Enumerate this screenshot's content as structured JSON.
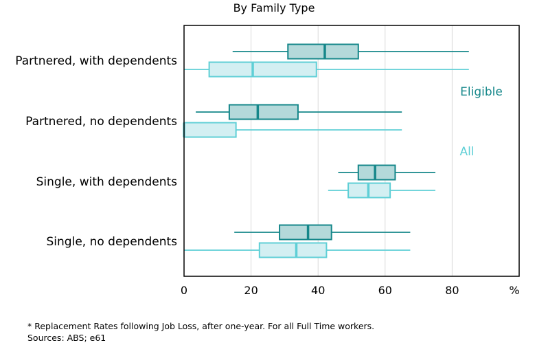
{
  "chart_data": {
    "type": "boxplot",
    "title": "By Family Type",
    "xlabel": "",
    "x_unit": "%",
    "ylabel": "",
    "xlim": [
      0,
      100
    ],
    "x_ticks": [
      0,
      20,
      40,
      60,
      80
    ],
    "grid": "vertical",
    "legend": "right, inline text labels",
    "categories": [
      "Partnered, with dependents",
      "Partnered, no dependents",
      "Single, with dependents",
      "Single, no dependents"
    ],
    "series": [
      {
        "name": "Eligible",
        "color": "#15878a",
        "fill": "#b4d9da",
        "boxes": [
          {
            "whisker_low": 14.5,
            "q1": 31,
            "median": 42,
            "q3": 52,
            "whisker_high": 85
          },
          {
            "whisker_low": 3.5,
            "q1": 13.5,
            "median": 22,
            "q3": 34,
            "whisker_high": 65
          },
          {
            "whisker_low": 46,
            "q1": 52,
            "median": 57,
            "q3": 63,
            "whisker_high": 75
          },
          {
            "whisker_low": 15,
            "q1": 28.5,
            "median": 37,
            "q3": 44,
            "whisker_high": 67.5
          }
        ]
      },
      {
        "name": "All",
        "color": "#5fcfd6",
        "fill": "#d3eff2",
        "boxes": [
          {
            "whisker_low": 0,
            "q1": 7.5,
            "median": 20.5,
            "q3": 39.5,
            "whisker_high": 85
          },
          {
            "whisker_low": 0,
            "q1": 0,
            "median": 0,
            "q3": 15.5,
            "whisker_high": 65
          },
          {
            "whisker_low": 43,
            "q1": 49,
            "median": 55,
            "q3": 61.5,
            "whisker_high": 75
          },
          {
            "whisker_low": 0,
            "q1": 22.5,
            "median": 33.5,
            "q3": 42.5,
            "whisker_high": 67.5
          }
        ]
      }
    ]
  },
  "footnote": {
    "line1": "* Replacement Rates following Job Loss, after one-year. For all Full Time workers.",
    "line2": "Sources: ABS; e61"
  }
}
